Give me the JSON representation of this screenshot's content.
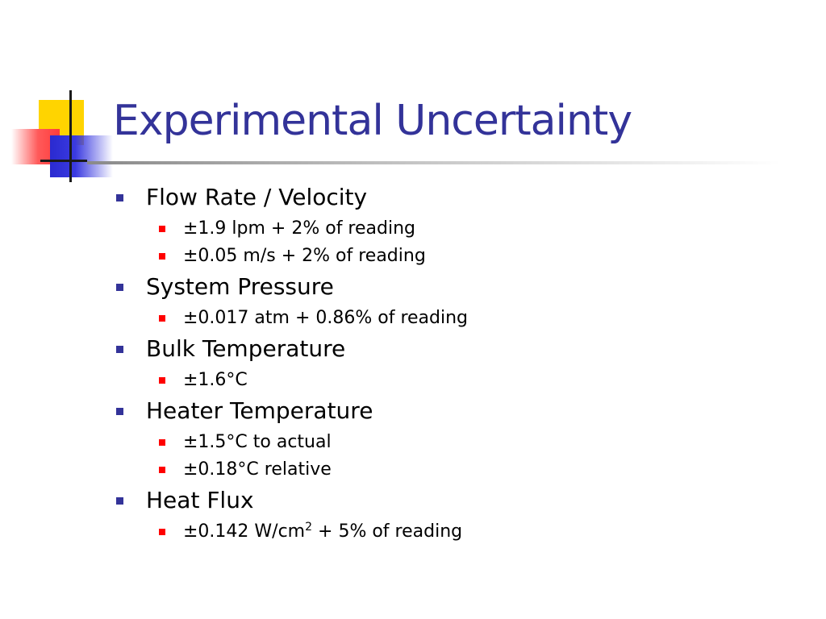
{
  "slide": {
    "title": "Experimental Uncertainty",
    "colors": {
      "title": "#333399",
      "level1_bullet": "#333399",
      "level2_bullet": "#ff0000",
      "logo_yellow": "#ffd400",
      "logo_red": "#ff3b3b",
      "logo_blue": "#2a2ad0"
    },
    "items": [
      {
        "label": "Flow Rate / Velocity",
        "sub": [
          {
            "text": "±1.9 lpm + 2% of reading"
          },
          {
            "text": "±0.05 m/s + 2% of reading"
          }
        ]
      },
      {
        "label": "System Pressure",
        "sub": [
          {
            "text": "±0.017 atm + 0.86% of reading"
          }
        ]
      },
      {
        "label": "Bulk Temperature",
        "sub": [
          {
            "text": "±1.6°C"
          }
        ]
      },
      {
        "label": "Heater Temperature",
        "sub": [
          {
            "text": "±1.5°C to actual"
          },
          {
            "text": "±0.18°C relative"
          }
        ]
      },
      {
        "label": "Heat Flux",
        "sub": [
          {
            "pre": "±0.142 W/cm",
            "sup": "2",
            "post": " + 5% of reading"
          }
        ]
      }
    ]
  }
}
